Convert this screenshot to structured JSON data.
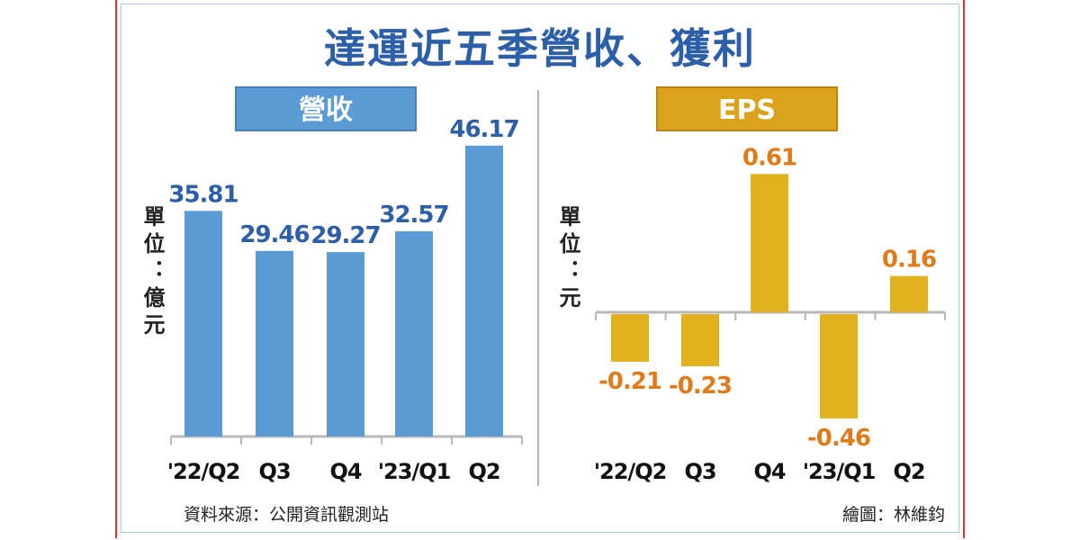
{
  "chart_data": [
    {
      "type": "bar",
      "title": "達運近五季營收、獲利",
      "panel_label": "營收",
      "unit_label": "單位：億元",
      "categories": [
        "'22/Q2",
        "Q3",
        "Q4",
        "'23/Q1",
        "Q2"
      ],
      "values": [
        35.81,
        29.46,
        29.27,
        32.57,
        46.17
      ],
      "value_labels": [
        "35.81",
        "29.46",
        "29.27",
        "32.57",
        "46.17"
      ],
      "ylim": [
        0,
        46.17
      ],
      "grid": false,
      "color": "#5b9bd5",
      "label_color": "#2d5ea8"
    },
    {
      "type": "bar",
      "panel_label": "EPS",
      "unit_label": "單位：元",
      "categories": [
        "'22/Q2",
        "Q3",
        "Q4",
        "'23/Q1",
        "Q2"
      ],
      "values": [
        -0.21,
        -0.23,
        0.61,
        -0.46,
        0.16
      ],
      "value_labels": [
        "-0.21",
        "-0.23",
        "0.61",
        "-0.46",
        "0.16"
      ],
      "ylim": [
        -0.46,
        0.61
      ],
      "grid": false,
      "color": "#e2b21e",
      "label_color": "#e07b1a"
    }
  ],
  "title": "達運近五季營收、獲利",
  "source": "資料來源：公開資訊觀測站",
  "credit": "繪圖：林維鈞"
}
